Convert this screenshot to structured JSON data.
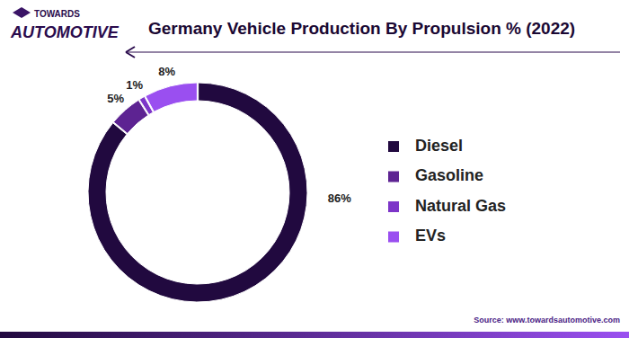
{
  "chart_data": {
    "type": "donut",
    "title": "Germany Vehicle Production By Propulsion % (2022)",
    "logo": [
      "TOWARDS",
      "AUTOMOTIVE"
    ],
    "source": "Source: www.towardsautomotive.com",
    "categories": [
      "Diesel",
      "Gasoline",
      "Natural Gas",
      "EVs"
    ],
    "values": [
      86,
      5,
      1,
      8
    ],
    "value_labels": [
      "86%",
      "5%",
      "1%",
      "8%"
    ],
    "colors": [
      "#21093f",
      "#5d2392",
      "#7d35c8",
      "#9a4ff0"
    ],
    "data_labels": true,
    "legend": "right"
  }
}
